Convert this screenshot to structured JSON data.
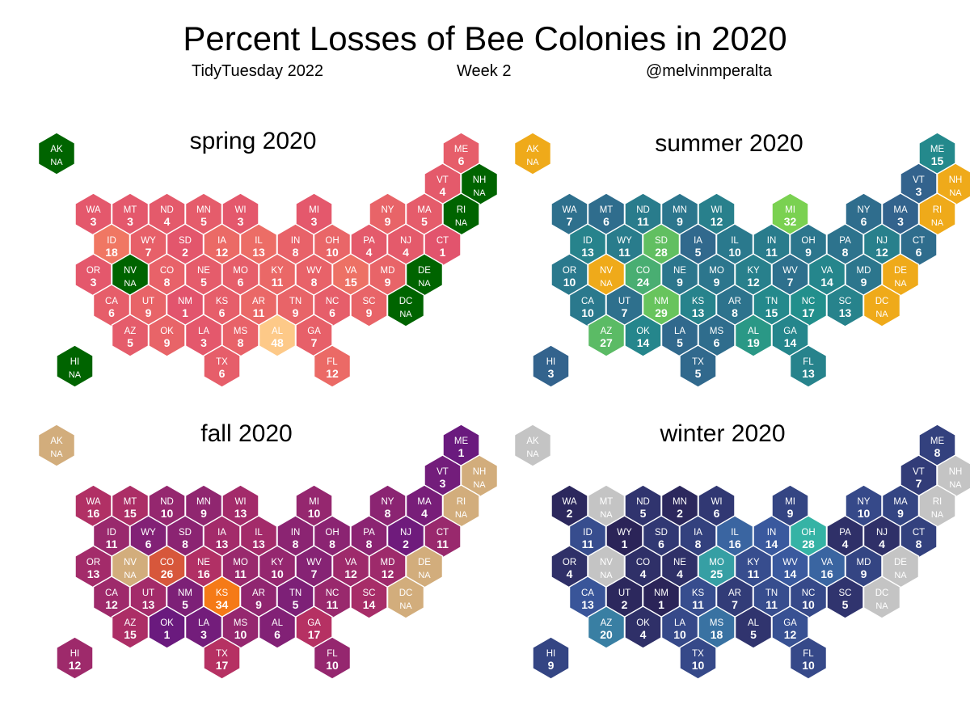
{
  "title": "Percent Losses of Bee Colonies in 2020",
  "subtitles": [
    "TidyTuesday 2022",
    "Week 2",
    "@melvinmperalta"
  ],
  "na_label": "NA",
  "chart_data": {
    "type": "hex-tile-map",
    "measure": "percent of colonies lost",
    "panels": [
      {
        "title": "spring 2020",
        "palette": {
          "low": "#e2546d",
          "mid": "#f5845f",
          "high": "#fdc988"
        },
        "na_color": "#006400",
        "values": {
          "AK": null,
          "ME": 6,
          "VT": 4,
          "NH": null,
          "WA": 3,
          "MT": 3,
          "ND": 4,
          "MN": 5,
          "WI": 3,
          "MI": 3,
          "NY": 9,
          "MA": 5,
          "RI": null,
          "ID": 18,
          "WY": 7,
          "SD": 2,
          "IA": 12,
          "IL": 13,
          "IN": 8,
          "OH": 10,
          "PA": 4,
          "NJ": 4,
          "CT": 1,
          "OR": 3,
          "NV": null,
          "CO": 8,
          "NE": 5,
          "MO": 6,
          "KY": 11,
          "WV": 8,
          "VA": 15,
          "MD": 9,
          "DE": null,
          "CA": 6,
          "UT": 9,
          "NM": 1,
          "KS": 6,
          "AR": 11,
          "TN": 9,
          "NC": 6,
          "SC": 9,
          "DC": null,
          "AZ": 5,
          "OK": 9,
          "LA": 3,
          "MS": 8,
          "AL": 48,
          "GA": 7,
          "HI": null,
          "TX": 6,
          "FL": 12
        }
      },
      {
        "title": "summer 2020",
        "palette": {
          "low": "#33638d",
          "mid": "#21918c",
          "high": "#7ad151"
        },
        "na_color": "#efaa1a",
        "values": {
          "AK": null,
          "ME": 15,
          "VT": 3,
          "NH": null,
          "WA": 7,
          "MT": 6,
          "ND": 11,
          "MN": 9,
          "WI": 12,
          "MI": 32,
          "NY": 6,
          "MA": 3,
          "RI": null,
          "ID": 13,
          "WY": 11,
          "SD": 28,
          "IA": 5,
          "IL": 10,
          "IN": 11,
          "OH": 9,
          "PA": 8,
          "NJ": 12,
          "CT": 6,
          "OR": 10,
          "NV": null,
          "CO": 24,
          "NE": 9,
          "MO": 9,
          "KY": 12,
          "WV": 7,
          "VA": 14,
          "MD": 9,
          "DE": null,
          "CA": 10,
          "UT": 7,
          "NM": 29,
          "KS": 13,
          "AR": 8,
          "TN": 15,
          "NC": 17,
          "SC": 13,
          "DC": null,
          "AZ": 27,
          "OK": 14,
          "LA": 5,
          "MS": 6,
          "AL": 19,
          "GA": 14,
          "HI": 3,
          "TX": 5,
          "FL": 13
        }
      },
      {
        "title": "fall 2020",
        "palette": {
          "low": "#6a1a7e",
          "mid": "#b83262",
          "high": "#f57a17"
        },
        "na_color": "#d2ad7c",
        "values": {
          "AK": null,
          "ME": 1,
          "VT": 3,
          "NH": null,
          "WA": 16,
          "MT": 15,
          "ND": 10,
          "MN": 9,
          "WI": 13,
          "MI": 10,
          "NY": 8,
          "MA": 4,
          "RI": null,
          "ID": 11,
          "WY": 6,
          "SD": 8,
          "IA": 13,
          "IL": 13,
          "IN": 8,
          "OH": 8,
          "PA": 8,
          "NJ": 2,
          "CT": 11,
          "OR": 13,
          "NV": null,
          "CO": 26,
          "NE": 16,
          "MO": 11,
          "KY": 10,
          "WV": 7,
          "VA": 12,
          "MD": 12,
          "DE": null,
          "CA": 12,
          "UT": 13,
          "NM": 5,
          "KS": 34,
          "AR": 9,
          "TN": 5,
          "NC": 11,
          "SC": 14,
          "DC": null,
          "AZ": 15,
          "OK": 1,
          "LA": 3,
          "MS": 10,
          "AL": 6,
          "GA": 17,
          "HI": 12,
          "TX": 17,
          "FL": 10
        }
      },
      {
        "title": "winter 2020",
        "palette": {
          "low": "#2b2458",
          "mid": "#3b5ba1",
          "high": "#35b3a5"
        },
        "na_color": "#c4c4c4",
        "values": {
          "AK": null,
          "ME": 8,
          "VT": 7,
          "NH": null,
          "WA": 2,
          "MT": null,
          "ND": 5,
          "MN": 2,
          "WI": 6,
          "MI": 9,
          "NY": 10,
          "MA": 9,
          "RI": null,
          "ID": 11,
          "WY": 1,
          "SD": 6,
          "IA": 8,
          "IL": 16,
          "IN": 14,
          "OH": 28,
          "PA": 4,
          "NJ": 4,
          "CT": 8,
          "OR": 4,
          "NV": null,
          "CO": 4,
          "NE": 4,
          "MO": 25,
          "KY": 11,
          "WV": 14,
          "VA": 16,
          "MD": 9,
          "DE": null,
          "CA": 13,
          "UT": 2,
          "NM": 1,
          "KS": 11,
          "AR": 7,
          "TN": 11,
          "NC": 10,
          "SC": 5,
          "DC": null,
          "AZ": 20,
          "OK": 4,
          "LA": 10,
          "MS": 18,
          "AL": 5,
          "GA": 12,
          "HI": 9,
          "TX": 10,
          "FL": 10
        }
      }
    ]
  }
}
